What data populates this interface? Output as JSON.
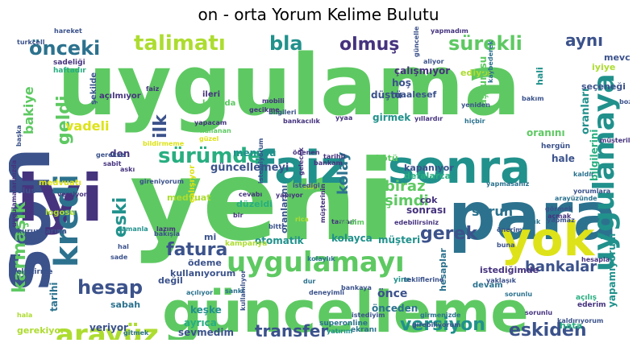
{
  "title": "on - orta Yorum Kelime Bulutu",
  "palette": {
    "purple": "#46337e",
    "indigo": "#3b528b",
    "teal": "#2c728e",
    "cyan": "#21918c",
    "green": "#28ae80",
    "lime": "#5ec962",
    "yellow": "#addc30",
    "gold": "#dde318"
  },
  "words": [
    {
      "text": "uygulama",
      "color": "#5ec962"
    },
    {
      "text": "yeni",
      "color": "#5ec962"
    },
    {
      "text": "güncelleme",
      "color": "#5ec962"
    },
    {
      "text": "para",
      "color": "#2c728e"
    },
    {
      "text": "faiz",
      "color": "#21918c"
    },
    {
      "text": "sonra",
      "color": "#21918c"
    },
    {
      "text": "son",
      "color": "#3b528b"
    },
    {
      "text": "iyi",
      "color": "#46337e"
    },
    {
      "text": "yok",
      "color": "#dde318"
    },
    {
      "text": "uygulamayı",
      "color": "#5ec962"
    },
    {
      "text": "kredi",
      "color": "#2c728e"
    },
    {
      "text": "uygulamaya",
      "color": "#21918c"
    },
    {
      "text": "arayüz",
      "color": "#addc30"
    },
    {
      "text": "gerek",
      "color": "#3b528b"
    },
    {
      "text": "hesap",
      "color": "#3b528b"
    },
    {
      "text": "sürümde",
      "color": "#28ae80"
    },
    {
      "text": "önceki",
      "color": "#2c728e"
    },
    {
      "text": "talimatı",
      "color": "#addc30"
    },
    {
      "text": "bla",
      "color": "#21918c"
    },
    {
      "text": "olmuş",
      "color": "#46337e"
    },
    {
      "text": "sürekli",
      "color": "#5ec962"
    },
    {
      "text": "aynı",
      "color": "#3b528b"
    },
    {
      "text": "versiyon",
      "color": "#21918c"
    },
    {
      "text": "transfer",
      "color": "#3b528b"
    },
    {
      "text": "eskiden",
      "color": "#3b528b"
    },
    {
      "text": "bankalar",
      "color": "#3b528b"
    },
    {
      "text": "fatura",
      "color": "#3b528b"
    },
    {
      "text": "karmaşık",
      "color": "#5ec962"
    },
    {
      "text": "eski",
      "color": "#21918c"
    },
    {
      "text": "geldi",
      "color": "#5ec962"
    },
    {
      "text": "şimdi",
      "color": "#5ec962"
    },
    {
      "text": "biraz",
      "color": "#5ec962"
    },
    {
      "text": "sorun",
      "color": "#2c728e"
    },
    {
      "text": "kolay",
      "color": "#2c728e"
    },
    {
      "text": "vadeli",
      "color": "#dde318"
    },
    {
      "text": "bakiye",
      "color": "#5ec962"
    },
    {
      "text": "ilk",
      "color": "#3b528b"
    },
    {
      "text": "güncellemeyi",
      "color": "#3b528b"
    },
    {
      "text": "yapamıyorum",
      "color": "#21918c"
    },
    {
      "text": "oranları",
      "color": "#21918c"
    },
    {
      "text": "bilgilerini",
      "color": "#28ae80"
    },
    {
      "text": "defalarca",
      "color": "#28ae80"
    },
    {
      "text": "kapanıyor",
      "color": "#3b528b"
    },
    {
      "text": "mevcut",
      "color": "#3b528b"
    },
    {
      "text": "hale",
      "color": "#3b528b"
    },
    {
      "text": "düştü",
      "color": "#3b528b"
    },
    {
      "text": "ediyor",
      "color": "#addc30"
    },
    {
      "text": "hoş",
      "color": "#3b528b"
    },
    {
      "text": "maalesef",
      "color": "#3b528b"
    },
    {
      "text": "çalışmıyor",
      "color": "#46337e"
    },
    {
      "text": "istediğimde",
      "color": "#46337e"
    },
    {
      "text": "müşteri",
      "color": "#21918c"
    },
    {
      "text": "kolayca",
      "color": "#21918c"
    },
    {
      "text": "otomatik",
      "color": "#21918c"
    },
    {
      "text": "ödeme",
      "color": "#3b528b"
    },
    {
      "text": "kullanıyorum",
      "color": "#3b528b"
    },
    {
      "text": "önce",
      "color": "#3b528b"
    },
    {
      "text": "önceden",
      "color": "#2c728e"
    },
    {
      "text": "hesaplar",
      "color": "#2c728e"
    },
    {
      "text": "ayrıca",
      "color": "#28ae80"
    },
    {
      "text": "keşke",
      "color": "#21918c"
    },
    {
      "text": "sevmedim",
      "color": "#3b528b"
    },
    {
      "text": "veriyor",
      "color": "#3b528b"
    },
    {
      "text": "gerekiyor",
      "color": "#addc30"
    },
    {
      "text": "tarihi",
      "color": "#2c728e"
    },
    {
      "text": "sabah",
      "color": "#2c728e"
    },
    {
      "text": "değil",
      "color": "#3b528b"
    },
    {
      "text": "mi",
      "color": "#3b528b"
    },
    {
      "text": "düzeldi",
      "color": "#28ae80"
    },
    {
      "text": "kötü",
      "color": "#5ec962"
    },
    {
      "text": "girmek",
      "color": "#21918c"
    },
    {
      "text": "menüsü",
      "color": "#21918c"
    },
    {
      "text": "medvuat",
      "color": "#addc30"
    },
    {
      "text": "den",
      "color": "#46337e"
    },
    {
      "text": "çok",
      "color": "#46337e"
    },
    {
      "text": "sonrası",
      "color": "#46337e"
    },
    {
      "text": "hata",
      "color": "#28ae80"
    },
    {
      "text": "başvurusu",
      "color": "#5ec962"
    },
    {
      "text": "iyiye",
      "color": "#addc30"
    },
    {
      "text": "seçeneği",
      "color": "#3b528b"
    },
    {
      "text": "hali",
      "color": "#21918c"
    },
    {
      "text": "ileri",
      "color": "#46337e"
    },
    {
      "text": "konuda",
      "color": "#5ec962"
    },
    {
      "text": "açılmıyor",
      "color": "#46337e"
    },
    {
      "text": "şekilde",
      "color": "#3b528b"
    },
    {
      "text": "sadeliği",
      "color": "#46337e"
    },
    {
      "text": "haftadır",
      "color": "#28ae80"
    },
    {
      "text": "kartı",
      "color": "#5ec962"
    },
    {
      "text": "oranını",
      "color": "#5ec962"
    },
    {
      "text": "hergün",
      "color": "#3b528b"
    },
    {
      "text": "medvuatı",
      "color": "#dde318"
    },
    {
      "text": "olus",
      "color": "#3b528b"
    },
    {
      "text": "çalışıyor",
      "color": "#dde318"
    },
    {
      "text": "oranlarını",
      "color": "#3b528b"
    },
    {
      "text": "kurumlarına",
      "color": "#3b528b"
    },
    {
      "text": "logosu",
      "color": "#addc30"
    },
    {
      "text": "devam",
      "color": "#2c728e"
    },
    {
      "text": "açılış",
      "color": "#28ae80"
    },
    {
      "text": "yine",
      "color": "#21918c"
    },
    {
      "text": "hesapla",
      "color": "#46337e"
    },
    {
      "text": "geliştirme",
      "color": "#3b528b"
    },
    {
      "text": "ekranı",
      "color": "#2c728e"
    },
    {
      "text": "yatırım",
      "color": "#21918c"
    },
    {
      "text": "superonline",
      "color": "#2c728e"
    },
    {
      "text": "kampanya",
      "color": "#addc30"
    },
    {
      "text": "deneyimli",
      "color": "#3b528b"
    },
    {
      "text": "yaklaşık",
      "color": "#3b528b"
    },
    {
      "text": "rica",
      "color": "#addc30"
    },
    {
      "text": "tamam",
      "color": "#46337e"
    },
    {
      "text": "ederim",
      "color": "#46337e"
    },
    {
      "text": "dur",
      "color": "#2c728e"
    },
    {
      "text": "hala",
      "color": "#addc30"
    },
    {
      "text": "girdim",
      "color": "#5ec962"
    },
    {
      "text": "açık",
      "color": "#2c728e"
    },
    {
      "text": "versiyona",
      "color": "#46337e"
    },
    {
      "text": "bitti",
      "color": "#3b528b"
    },
    {
      "text": "sanki",
      "color": "#2c728e"
    },
    {
      "text": "kolaylık",
      "color": "#2c728e"
    },
    {
      "text": "bilgileri",
      "color": "#3b528b"
    },
    {
      "text": "yyaa",
      "color": "#46337e"
    },
    {
      "text": "bakım",
      "color": "#3b528b"
    },
    {
      "text": "gitmek",
      "color": "#2c728e"
    },
    {
      "text": "ekle",
      "color": "#addc30"
    },
    {
      "text": "güzel",
      "color": "#dde318"
    },
    {
      "text": "mobili",
      "color": "#46337e"
    },
    {
      "text": "faiz",
      "color": "#46337e"
    },
    {
      "text": "yapacam",
      "color": "#46337e"
    },
    {
      "text": "kullanan",
      "color": "#5ec962"
    },
    {
      "text": "bildirmeme",
      "color": "#dde318"
    },
    {
      "text": "gerekse",
      "color": "#3b528b"
    },
    {
      "text": "sabit",
      "color": "#46337e"
    },
    {
      "text": "istedigi",
      "color": "#3b528b"
    },
    {
      "text": "zamanla",
      "color": "#21918c"
    },
    {
      "text": "lazım",
      "color": "#46337e"
    },
    {
      "text": "sade",
      "color": "#3b528b"
    },
    {
      "text": "bakışla",
      "color": "#3b528b"
    },
    {
      "text": "askı",
      "color": "#46337e"
    },
    {
      "text": "hal",
      "color": "#3b528b"
    },
    {
      "text": "arayüzünde",
      "color": "#2c728e"
    },
    {
      "text": "yapmasanız",
      "color": "#2c728e"
    },
    {
      "text": "kaybederek",
      "color": "#2c728e"
    },
    {
      "text": "yıllardır",
      "color": "#46337e"
    },
    {
      "text": "bankacılık",
      "color": "#46337e"
    },
    {
      "text": "hiçbir",
      "color": "#2c728e"
    },
    {
      "text": "yeniden",
      "color": "#3b528b"
    },
    {
      "text": "hareket",
      "color": "#3b528b"
    },
    {
      "text": "turkcell",
      "color": "#3b528b"
    },
    {
      "text": "yapmaz",
      "color": "#3b528b"
    },
    {
      "text": "bozdu",
      "color": "#3b528b"
    },
    {
      "text": "aliyor",
      "color": "#3b528b"
    },
    {
      "text": "başka",
      "color": "#3b528b"
    },
    {
      "text": "açılıyor",
      "color": "#2c728e"
    },
    {
      "text": "girmenizde",
      "color": "#2c728e"
    },
    {
      "text": "sorunlu",
      "color": "#2c728e"
    },
    {
      "text": "istemiyorum",
      "color": "#3b528b"
    },
    {
      "text": "görmek",
      "color": "#3b528b"
    },
    {
      "text": "açmak",
      "color": "#46337e"
    },
    {
      "text": "bankaya",
      "color": "#3b528b"
    },
    {
      "text": "girebiliyorum",
      "color": "#3b528b"
    },
    {
      "text": "kaldırıyorum",
      "color": "#3b528b"
    },
    {
      "text": "yorumlara",
      "color": "#3b528b"
    },
    {
      "text": "uygulamalarınızda",
      "color": "#46337e"
    },
    {
      "text": "kullanılıyor",
      "color": "#3b528b"
    },
    {
      "text": "gireniyorum",
      "color": "#3b528b"
    },
    {
      "text": "istediyim",
      "color": "#3b528b"
    },
    {
      "text": "kaldır",
      "color": "#2c728e"
    },
    {
      "text": "müşterilerimizden",
      "color": "#46337e"
    },
    {
      "text": "güncellenmeden",
      "color": "#3b528b"
    },
    {
      "text": "tekliflerine",
      "color": "#3b528b"
    },
    {
      "text": "yapmadım",
      "color": "#46337e"
    },
    {
      "text": "buna",
      "color": "#3b528b"
    },
    {
      "text": "önerim",
      "color": "#3b528b"
    },
    {
      "text": "sorunlu",
      "color": "#46337e"
    },
    {
      "text": "müşterinin",
      "color": "#46337e"
    },
    {
      "text": "bankam",
      "color": "#46337e"
    },
    {
      "text": "gecikme",
      "color": "#46337e"
    },
    {
      "text": "yapıyor",
      "color": "#46337e"
    },
    {
      "text": "cevabı",
      "color": "#46337e"
    },
    {
      "text": "gelecek",
      "color": "#46337e"
    },
    {
      "text": "bir",
      "color": "#46337e"
    },
    {
      "text": "tarihli",
      "color": "#46337e"
    },
    {
      "text": "ödenen",
      "color": "#46337e"
    },
    {
      "text": "edebilirsiniz",
      "color": "#46337e"
    }
  ]
}
